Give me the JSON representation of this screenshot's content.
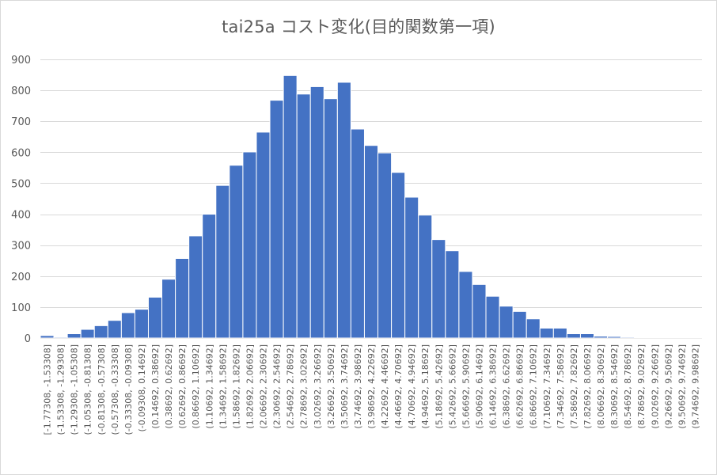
{
  "chart_data": {
    "type": "bar",
    "title": "tai25a コスト変化(目的関数第一項)",
    "ylim": [
      0,
      900
    ],
    "yticks": [
      0,
      100,
      200,
      300,
      400,
      500,
      600,
      700,
      800,
      900
    ],
    "grid": true,
    "categories": [
      "[-1.77308, -1.53308]",
      "(-1.53308, -1.29308]",
      "(-1.29308, -1.05308]",
      "(-1.05308, -0.81308]",
      "(-0.81308, -0.57308]",
      "(-0.57308, -0.33308]",
      "(-0.33308, -0.09308]",
      "(-0.09308, 0.14692]",
      "(0.14692, 0.38692]",
      "(0.38692, 0.62692]",
      "(0.62692, 0.86692]",
      "(0.86692, 1.10692]",
      "(1.10692, 1.34692]",
      "(1.34692, 1.58692]",
      "(1.58692, 1.82692]",
      "(1.82692, 2.06692]",
      "(2.06692, 2.30692]",
      "(2.30692, 2.54692]",
      "(2.54692, 2.78692]",
      "(2.78692, 3.02692]",
      "(3.02692, 3.26692]",
      "(3.26692, 3.50692]",
      "(3.50692, 3.74692]",
      "(3.74692, 3.98692]",
      "(3.98692, 4.22692]",
      "(4.22692, 4.46692]",
      "(4.46692, 4.70692]",
      "(4.70692, 4.94692]",
      "(4.94692, 5.18692]",
      "(5.18692, 5.42692]",
      "(5.42692, 5.66692]",
      "(5.66692, 5.90692]",
      "(5.90692, 6.14692]",
      "(6.14692, 6.38692]",
      "(6.38692, 6.62692]",
      "(6.62692, 6.86692]",
      "(6.86692, 7.10692]",
      "(7.10692, 7.34692]",
      "(7.34692, 7.58692]",
      "(7.58692, 7.82692]",
      "(7.82692, 8.06692]",
      "(8.06692, 8.30692]",
      "(8.30692, 8.54692]",
      "(8.54692, 8.78692]",
      "(8.78692, 9.02692]",
      "(9.02692, 9.26692]",
      "(9.26692, 9.50692]",
      "(9.50692, 9.74692]",
      "(9.74692, 9.98692]"
    ],
    "values": [
      8,
      3,
      14,
      28,
      40,
      57,
      82,
      93,
      132,
      190,
      257,
      330,
      400,
      493,
      558,
      601,
      665,
      768,
      848,
      788,
      812,
      773,
      826,
      675,
      622,
      598,
      535,
      455,
      397,
      318,
      282,
      215,
      173,
      135,
      103,
      86,
      62,
      32,
      32,
      14,
      14,
      6,
      5,
      3,
      1,
      1,
      1,
      1,
      1
    ],
    "bar_color": "#4472c4",
    "grid_color": "#d9d9d9",
    "text_color": "#595959"
  }
}
